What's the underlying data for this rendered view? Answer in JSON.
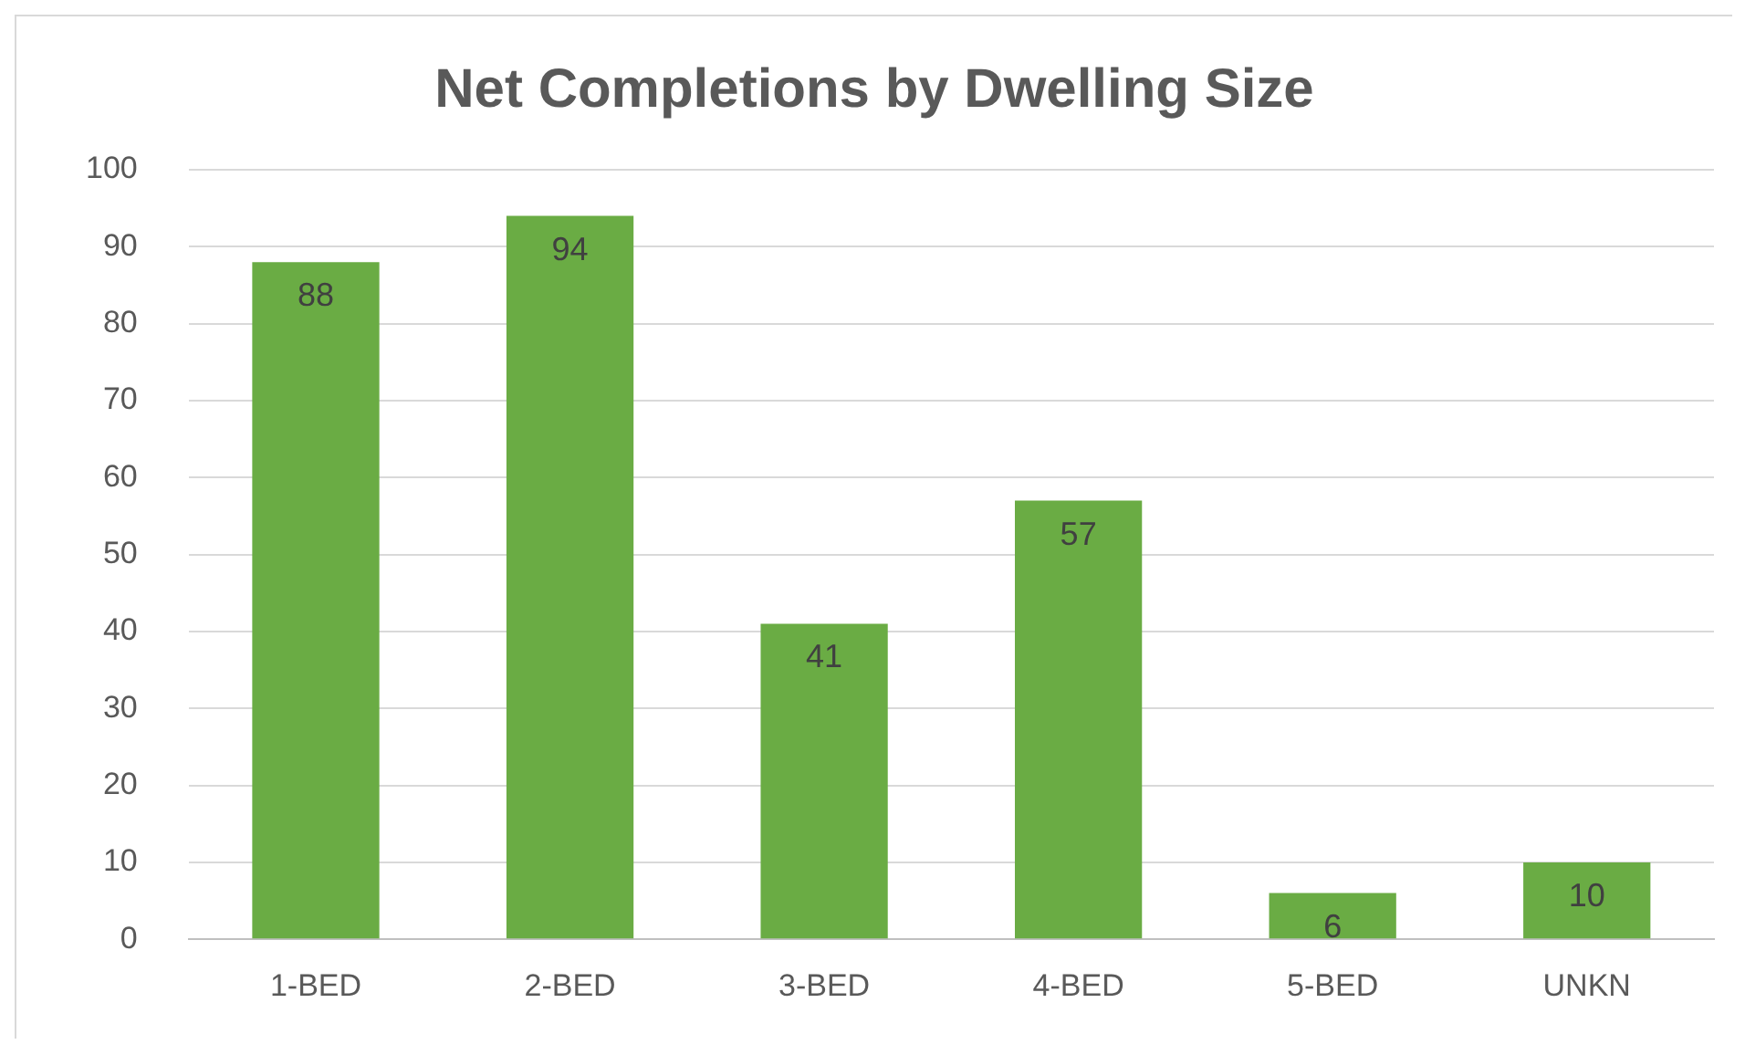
{
  "chart_data": {
    "type": "bar",
    "title": "Net Completions by Dwelling Size",
    "categories": [
      "1-BED",
      "2-BED",
      "3-BED",
      "4-BED",
      "5-BED",
      "UNKN"
    ],
    "values": [
      88,
      94,
      41,
      57,
      6,
      10
    ],
    "color": "#6aac44",
    "ylim": [
      0,
      100
    ],
    "yticks": [
      0,
      10,
      20,
      30,
      40,
      50,
      60,
      70,
      80,
      90,
      100
    ],
    "grid": "y",
    "data_labels": true,
    "legend": false
  }
}
